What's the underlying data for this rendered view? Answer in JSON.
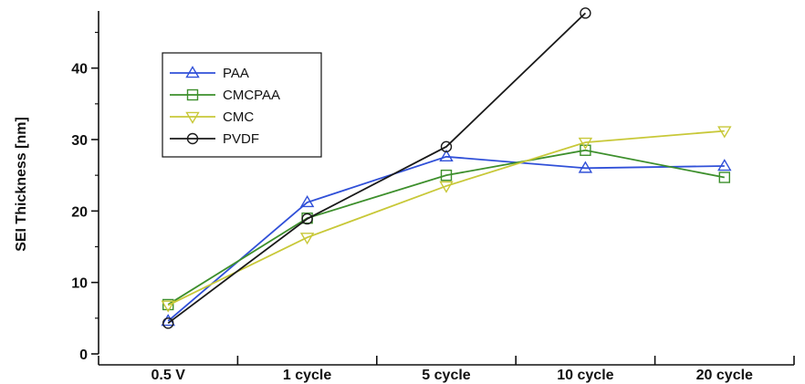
{
  "chart_data": {
    "type": "line",
    "ylabel": "SEI Thickness [nm]",
    "xlabel": "",
    "categories": [
      "0.5 V",
      "1 cycle",
      "5 cycle",
      "10 cycle",
      "20 cycle"
    ],
    "ylim": [
      0,
      48
    ],
    "yticks": [
      0,
      10,
      20,
      30,
      40
    ],
    "grid": false,
    "legend": "top-left",
    "series": [
      {
        "name": "PAA",
        "marker": "triangle-up",
        "color": "#3050d8",
        "values": [
          4.6,
          21.2,
          27.6,
          26.0,
          26.3
        ]
      },
      {
        "name": "CMCPAA",
        "marker": "square",
        "color": "#3d8f2c",
        "values": [
          6.9,
          19.0,
          25.0,
          28.5,
          24.7
        ]
      },
      {
        "name": "CMC",
        "marker": "triangle-down",
        "color": "#c8c838",
        "values": [
          6.8,
          16.3,
          23.5,
          29.6,
          31.2
        ]
      },
      {
        "name": "PVDF",
        "marker": "circle",
        "color": "#1a1a1a",
        "values": [
          4.3,
          18.9,
          29.0,
          47.7,
          null
        ]
      }
    ]
  }
}
